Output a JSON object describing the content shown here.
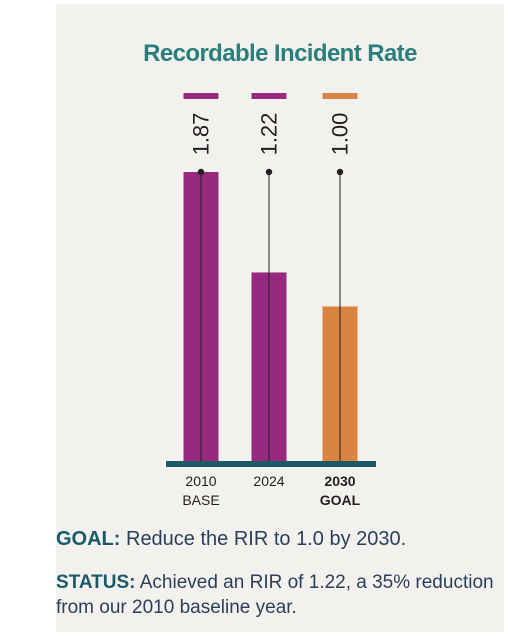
{
  "chart_data": {
    "type": "bar",
    "title": "Recordable Incident Rate",
    "categories": [
      {
        "line1": "2010",
        "line2": "BASE",
        "bold": false
      },
      {
        "line1": "2024",
        "line2": "",
        "bold": false
      },
      {
        "line1": "2030",
        "line2": "GOAL",
        "bold": true
      }
    ],
    "values": [
      1.87,
      1.22,
      1.0
    ],
    "value_labels": [
      "1.87",
      "1.22",
      "1.00"
    ],
    "colors": [
      "#962a7e",
      "#962a7e",
      "#da8443"
    ],
    "ylim": [
      0,
      1.87
    ],
    "grid": false,
    "legend": "none"
  },
  "footer": {
    "goal_label": "GOAL:",
    "goal_text": " Reduce the RIR to 1.0 by 2030.",
    "status_label": "STATUS:",
    "status_text": " Achieved an RIR of 1.22, a 35% reduction from our 2010 baseline year."
  }
}
